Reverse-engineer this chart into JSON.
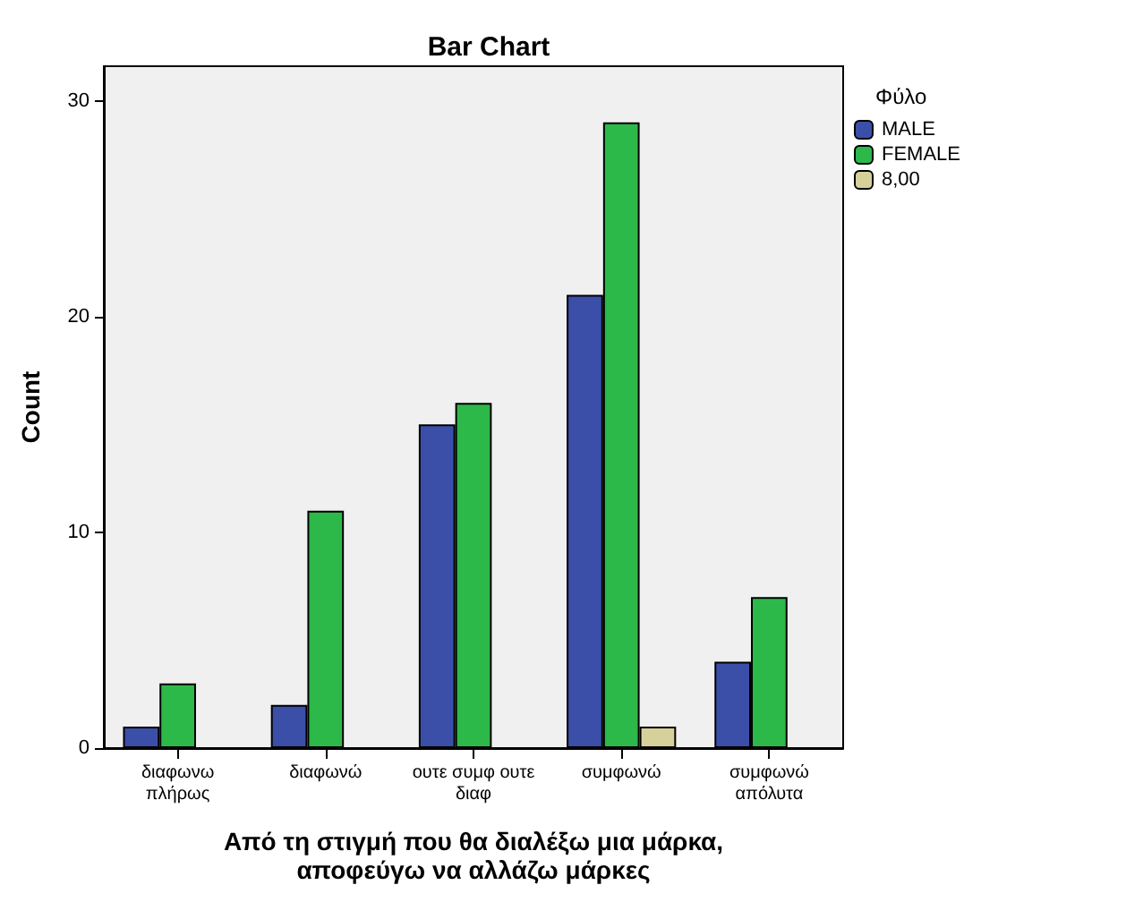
{
  "chart_data": {
    "type": "bar",
    "title": "Bar Chart",
    "xlabel": "Από τη στιγμή που θα διαλέξω μια μάρκα,\nαποφεύγω να αλλάζω μάρκες",
    "ylabel": "Count",
    "legend_title": "Φύλο",
    "categories": [
      "διαφωνω\nπλήρως",
      "διαφωνώ",
      "ουτε συμφ ουτε\nδιαφ",
      "συμφωνώ",
      "συμφωνώ\nαπόλυτα"
    ],
    "series": [
      {
        "name": "MALE",
        "color": "#3b4fa8",
        "values": [
          1,
          2,
          15,
          21,
          4
        ]
      },
      {
        "name": "FEMALE",
        "color": "#2db84a",
        "values": [
          3,
          11,
          16,
          29,
          7
        ]
      },
      {
        "name": "8,00",
        "color": "#d6d19a",
        "values": [
          null,
          null,
          null,
          1,
          null
        ]
      }
    ],
    "ylim": [
      0,
      31.6
    ],
    "yticks": [
      0,
      10,
      20,
      30
    ],
    "grid": false,
    "legend": "top right"
  }
}
